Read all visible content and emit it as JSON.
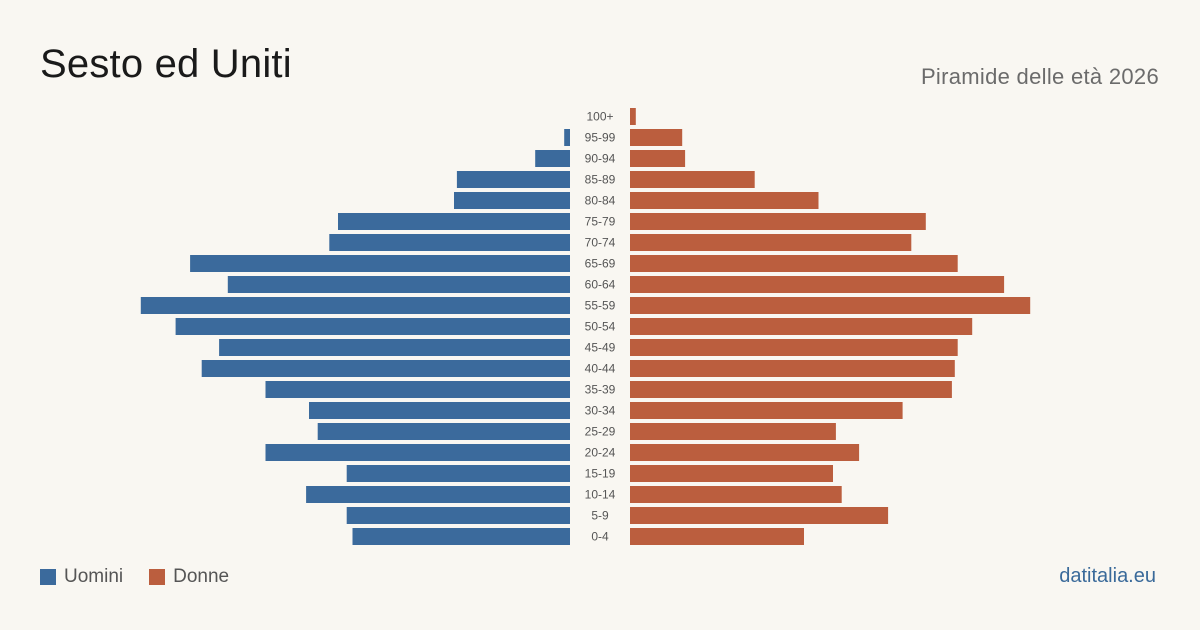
{
  "title": "Sesto ed Uniti",
  "subtitle": "Piramide delle età 2026",
  "legend": {
    "men": "Uomini",
    "women": "Donne"
  },
  "source": "datitalia.eu",
  "colors": {
    "men": "#3b6a9c",
    "women": "#bb5e3e",
    "background": "#f9f7f2"
  },
  "chart_data": {
    "type": "bar",
    "orientation": "horizontal-pyramid",
    "categories": [
      "100+",
      "95-99",
      "90-94",
      "85-89",
      "80-84",
      "75-79",
      "70-74",
      "65-69",
      "60-64",
      "55-59",
      "50-54",
      "45-49",
      "40-44",
      "35-39",
      "30-34",
      "25-29",
      "20-24",
      "15-19",
      "10-14",
      "5-9",
      "0-4"
    ],
    "series": [
      {
        "name": "Uomini",
        "values": [
          0,
          2,
          12,
          39,
          40,
          80,
          83,
          131,
          118,
          148,
          136,
          121,
          127,
          105,
          90,
          87,
          105,
          77,
          91,
          77,
          75
        ]
      },
      {
        "name": "Donne",
        "values": [
          2,
          18,
          19,
          43,
          65,
          102,
          97,
          113,
          129,
          138,
          118,
          113,
          112,
          111,
          94,
          71,
          79,
          70,
          73,
          89,
          60
        ]
      }
    ],
    "xlabel": "",
    "ylabel": "",
    "grid": false,
    "legend_position": "bottom-left"
  }
}
